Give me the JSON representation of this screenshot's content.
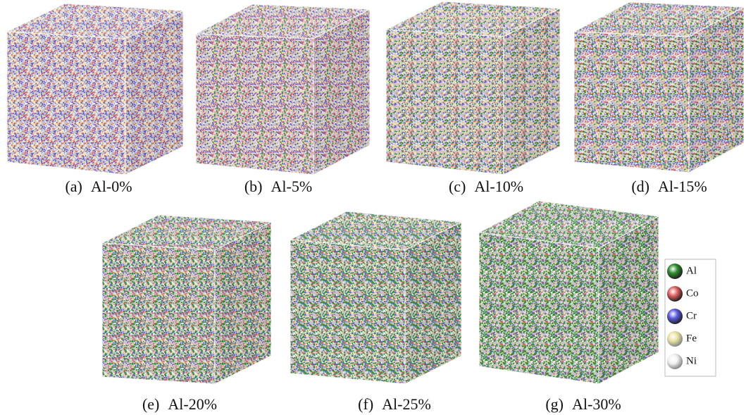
{
  "panels": [
    {
      "tag": "(a)",
      "caption": "Al-0%"
    },
    {
      "tag": "(b)",
      "caption": "Al-5%"
    },
    {
      "tag": "(c)",
      "caption": "Al-10%"
    },
    {
      "tag": "(d)",
      "caption": "Al-15%"
    },
    {
      "tag": "(e)",
      "caption": "Al-20%"
    },
    {
      "tag": "(f)",
      "caption": "Al-25%"
    },
    {
      "tag": "(g)",
      "caption": "Al-30%"
    }
  ],
  "legend": {
    "items": [
      "Al",
      "Co",
      "Cr",
      "Fe",
      "Ni"
    ]
  }
}
